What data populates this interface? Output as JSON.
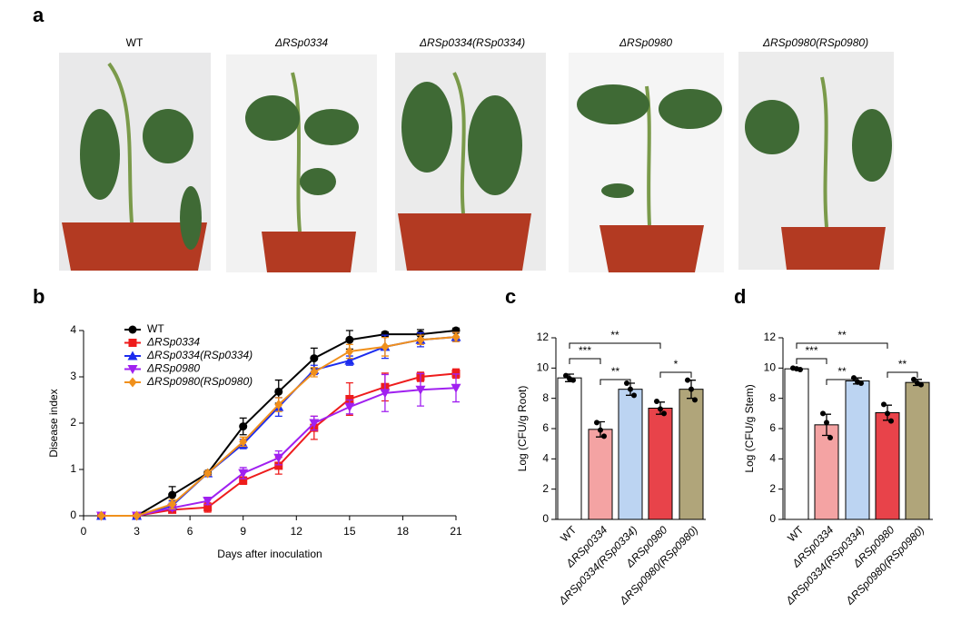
{
  "panel_labels": [
    "a",
    "b",
    "c",
    "d"
  ],
  "photos": {
    "labels": [
      "WT",
      "ΔRSp0334",
      "ΔRSp0334(RSp0334)",
      "ΔRSp0980",
      "ΔRSp0980(RSp0980)"
    ]
  },
  "chart_data": [
    {
      "type": "line",
      "xlabel": "Days after inoculation",
      "ylabel": "Disease index",
      "x": [
        1,
        3,
        5,
        7,
        9,
        11,
        13,
        15,
        17,
        19,
        21
      ],
      "xlim": [
        0,
        21
      ],
      "xticks": [
        0,
        3,
        6,
        9,
        12,
        15,
        18,
        21
      ],
      "ylim": [
        0,
        4
      ],
      "yticks": [
        0,
        1,
        2,
        3,
        4
      ],
      "series": [
        {
          "name": "WT",
          "color": "#000000",
          "marker": "circle",
          "values": [
            0,
            0,
            0.45,
            0.92,
            1.93,
            2.68,
            3.4,
            3.8,
            3.92,
            3.92,
            4.0
          ],
          "errors": [
            0,
            0,
            0.18,
            0.05,
            0.18,
            0.25,
            0.22,
            0.2,
            0.05,
            0.1,
            0.05
          ]
        },
        {
          "name": "ΔRSp0334",
          "color": "#ee1c1c",
          "marker": "square",
          "values": [
            0,
            0,
            0.13,
            0.18,
            0.76,
            1.08,
            1.9,
            2.52,
            2.78,
            3.0,
            3.07
          ],
          "errors": [
            0,
            0,
            0.05,
            0.1,
            0.08,
            0.18,
            0.25,
            0.35,
            0.3,
            0.1,
            0.1
          ]
        },
        {
          "name": "ΔRSp0334(RSp0334)",
          "color": "#1c2cee",
          "marker": "triangle-up",
          "values": [
            0,
            0,
            0.22,
            0.92,
            1.55,
            2.35,
            3.15,
            3.35,
            3.65,
            3.8,
            3.86
          ],
          "errors": [
            0,
            0,
            0.1,
            0.05,
            0.1,
            0.2,
            0.1,
            0.1,
            0.25,
            0.15,
            0.1
          ]
        },
        {
          "name": "ΔRSp0980",
          "color": "#a020f0",
          "marker": "triangle-down",
          "values": [
            0,
            0,
            0.17,
            0.32,
            0.92,
            1.25,
            2.0,
            2.35,
            2.65,
            2.72,
            2.76
          ],
          "errors": [
            0,
            0,
            0.05,
            0.08,
            0.12,
            0.15,
            0.15,
            0.15,
            0.4,
            0.35,
            0.3
          ]
        },
        {
          "name": "ΔRSp0980(RSp0980)",
          "color": "#f0901c",
          "marker": "diamond",
          "values": [
            0,
            0,
            0.25,
            0.92,
            1.6,
            2.4,
            3.1,
            3.55,
            3.65,
            3.8,
            3.86
          ],
          "errors": [
            0,
            0,
            0.1,
            0.05,
            0.1,
            0.15,
            0.1,
            0.15,
            0.2,
            0.1,
            0.1
          ]
        }
      ]
    },
    {
      "type": "bar",
      "ylabel": "Log (CFU/g Root)",
      "ylim": [
        0,
        12
      ],
      "yticks": [
        0,
        2,
        4,
        6,
        8,
        10,
        12
      ],
      "categories": [
        "WT",
        "ΔRSp0334",
        "ΔRSp0334(RSp0334)",
        "ΔRSp0980",
        "ΔRSp0980(RSp0980)"
      ],
      "colors": [
        "#ffffff",
        "#f4a3a3",
        "#bcd4f2",
        "#e8434a",
        "#b0a57a"
      ],
      "values": [
        9.35,
        5.95,
        8.6,
        7.35,
        8.6
      ],
      "errors": [
        0.25,
        0.5,
        0.4,
        0.4,
        0.6
      ],
      "points": [
        [
          9.5,
          9.3,
          9.2
        ],
        [
          6.4,
          5.9,
          5.5
        ],
        [
          9.0,
          8.6,
          8.2
        ],
        [
          7.8,
          7.3,
          7.0
        ],
        [
          9.2,
          8.6,
          7.9
        ]
      ],
      "significance": [
        {
          "label": "***",
          "between": [
            "WT",
            "ΔRSp0334"
          ]
        },
        {
          "label": "**",
          "between": [
            "ΔRSp0334",
            "ΔRSp0334(RSp0334)"
          ]
        },
        {
          "label": "**",
          "between": [
            "WT",
            "ΔRSp0980"
          ]
        },
        {
          "label": "*",
          "between": [
            "ΔRSp0980",
            "ΔRSp0980(RSp0980)"
          ]
        }
      ]
    },
    {
      "type": "bar",
      "ylabel": "Log (CFU/g Stem)",
      "ylim": [
        0,
        12
      ],
      "yticks": [
        0,
        2,
        4,
        6,
        8,
        10,
        12
      ],
      "categories": [
        "WT",
        "ΔRSp0334",
        "ΔRSp0334(RSp0334)",
        "ΔRSp0980",
        "ΔRSp0980(RSp0980)"
      ],
      "colors": [
        "#ffffff",
        "#f4a3a3",
        "#bcd4f2",
        "#e8434a",
        "#b0a57a"
      ],
      "values": [
        9.95,
        6.25,
        9.15,
        7.05,
        9.05
      ],
      "errors": [
        0.05,
        0.7,
        0.2,
        0.5,
        0.2
      ],
      "points": [
        [
          10.0,
          9.95,
          9.9
        ],
        [
          7.0,
          6.4,
          5.4
        ],
        [
          9.35,
          9.1,
          9.0
        ],
        [
          7.6,
          7.0,
          6.5
        ],
        [
          9.25,
          9.0,
          8.9
        ]
      ],
      "significance": [
        {
          "label": "***",
          "between": [
            "WT",
            "ΔRSp0334"
          ]
        },
        {
          "label": "**",
          "between": [
            "ΔRSp0334",
            "ΔRSp0334(RSp0334)"
          ]
        },
        {
          "label": "**",
          "between": [
            "WT",
            "ΔRSp0980"
          ]
        },
        {
          "label": "**",
          "between": [
            "ΔRSp0980",
            "ΔRSp0980(RSp0980)"
          ]
        }
      ]
    }
  ]
}
